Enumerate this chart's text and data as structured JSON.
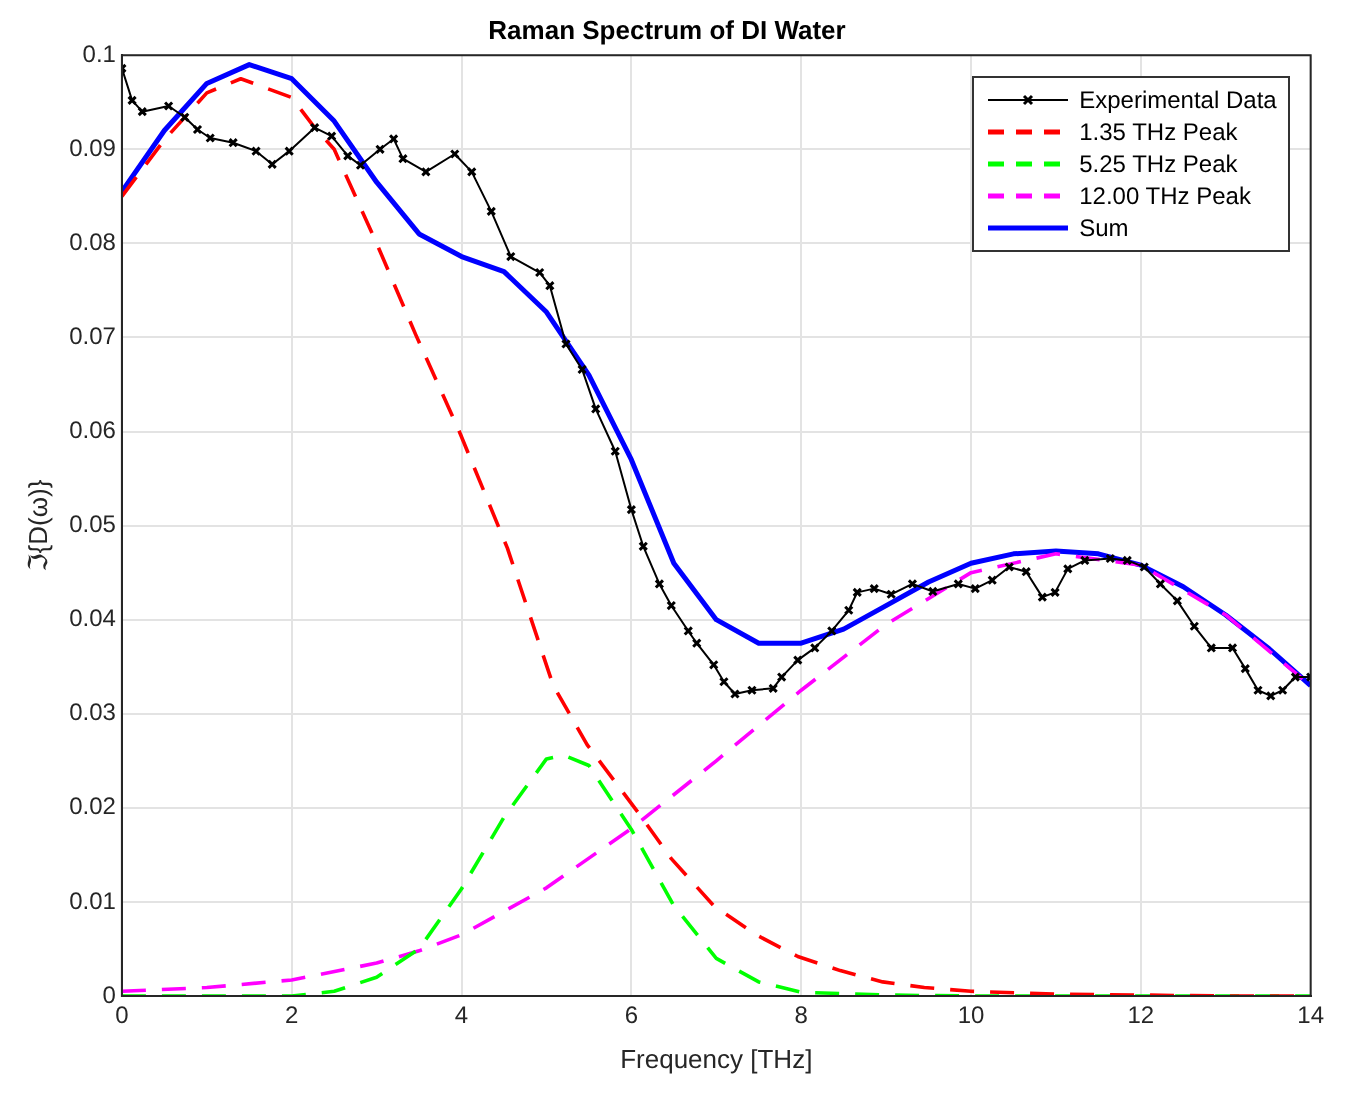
{
  "chart_data": {
    "type": "line",
    "title": "Raman Spectrum of DI Water",
    "xlabel": "Frequency [THz]",
    "ylabel": "ℑ{D(ω)}",
    "xlim": [
      0,
      14
    ],
    "xticks": [
      0,
      2,
      4,
      6,
      8,
      10,
      12,
      14
    ],
    "ylim": [
      0,
      0.1
    ],
    "yticks": [
      0,
      0.01,
      0.02,
      0.03,
      0.04,
      0.05,
      0.06,
      0.07,
      0.08,
      0.09,
      0.1
    ],
    "grid": true,
    "legend": "top right",
    "series": [
      {
        "name": "Experimental Data",
        "color": "#000000",
        "marker": "cross",
        "line_style": "solid",
        "x": [
          0,
          0.12,
          0.24,
          0.55,
          0.74,
          0.89,
          1.04,
          1.31,
          1.58,
          1.77,
          1.97,
          2.27,
          2.47,
          2.66,
          2.81,
          3.04,
          3.2,
          3.31,
          3.58,
          3.92,
          4.12,
          4.35,
          4.58,
          4.92,
          5.04,
          5.23,
          5.42,
          5.58,
          5.81,
          6.0,
          6.14,
          6.33,
          6.47,
          6.67,
          6.77,
          6.97,
          7.09,
          7.22,
          7.42,
          7.67,
          7.77,
          7.96,
          8.16,
          8.36,
          8.56,
          8.66,
          8.86,
          9.06,
          9.31,
          9.55,
          9.85,
          10.05,
          10.25,
          10.45,
          10.65,
          10.84,
          10.99,
          11.14,
          11.34,
          11.64,
          11.84,
          12.04,
          12.23,
          12.43,
          12.63,
          12.83,
          13.08,
          13.23,
          13.38,
          13.53,
          13.67,
          13.82,
          14.0
        ],
        "values": [
          0.0986,
          0.0952,
          0.094,
          0.0946,
          0.0934,
          0.0921,
          0.0912,
          0.0907,
          0.0898,
          0.0884,
          0.0898,
          0.0923,
          0.0914,
          0.0893,
          0.0883,
          0.09,
          0.0911,
          0.089,
          0.0876,
          0.0895,
          0.0876,
          0.0834,
          0.0786,
          0.0769,
          0.0755,
          0.0693,
          0.0666,
          0.0624,
          0.0579,
          0.0517,
          0.0478,
          0.0438,
          0.0415,
          0.0388,
          0.0375,
          0.0352,
          0.0334,
          0.0321,
          0.0325,
          0.0327,
          0.0339,
          0.0357,
          0.037,
          0.0388,
          0.041,
          0.0429,
          0.0433,
          0.0427,
          0.0438,
          0.043,
          0.0438,
          0.0433,
          0.0442,
          0.0456,
          0.0451,
          0.0424,
          0.0429,
          0.0454,
          0.0463,
          0.0465,
          0.0463,
          0.0456,
          0.0438,
          0.042,
          0.0393,
          0.037,
          0.037,
          0.0348,
          0.0325,
          0.0319,
          0.0325,
          0.0339,
          0.0339
        ]
      },
      {
        "name": "1.35 THz Peak",
        "color": "#ff0000",
        "marker": "none",
        "line_style": "dashed",
        "x": [
          0,
          0.5,
          1,
          1.4,
          2,
          2.27,
          2.5,
          3,
          3.46,
          3.96,
          4.54,
          5.08,
          5.48,
          6.08,
          6.47,
          6.97,
          7.47,
          7.96,
          8.46,
          8.96,
          9.45,
          10,
          11,
          12,
          13,
          14
        ],
        "values": [
          0.085,
          0.091,
          0.096,
          0.0975,
          0.0955,
          0.0923,
          0.09,
          0.08,
          0.0703,
          0.0603,
          0.0476,
          0.033,
          0.0267,
          0.0195,
          0.0146,
          0.0096,
          0.0065,
          0.0042,
          0.0027,
          0.0015,
          0.0009,
          0.0005,
          0.0002,
          0.0001,
          0,
          0
        ]
      },
      {
        "name": "5.25 THz Peak",
        "color": "#00ff00",
        "marker": "none",
        "line_style": "dashed",
        "x": [
          0,
          1,
          2,
          2.5,
          3,
          3.5,
          4,
          4.5,
          5,
          5.2,
          5.5,
          6,
          6.5,
          7,
          7.5,
          8,
          9,
          10,
          12,
          14
        ],
        "values": [
          0,
          0,
          0,
          0.0005,
          0.002,
          0.005,
          0.0114,
          0.019,
          0.0252,
          0.0256,
          0.0245,
          0.0177,
          0.0096,
          0.004,
          0.0015,
          0.0004,
          0.0001,
          0,
          0,
          0
        ]
      },
      {
        "name": "12.00 THz Peak",
        "color": "#ff00ff",
        "marker": "none",
        "line_style": "dashed",
        "x": [
          0,
          1,
          2,
          3,
          3.5,
          4,
          5,
          6,
          7,
          8,
          9,
          10,
          11,
          12,
          13,
          14
        ],
        "values": [
          0.0005,
          0.0009,
          0.0017,
          0.0035,
          0.0048,
          0.0065,
          0.0115,
          0.0178,
          0.025,
          0.0325,
          0.0395,
          0.045,
          0.047,
          0.0458,
          0.0405,
          0.033
        ]
      },
      {
        "name": "Sum",
        "color": "#0000ff",
        "marker": "none",
        "line_style": "solid",
        "x": [
          0,
          0.5,
          1,
          1.5,
          2,
          2.5,
          3,
          3.5,
          4,
          4.5,
          5,
          5.5,
          6,
          6.5,
          7,
          7.5,
          8,
          8.5,
          9,
          9.5,
          10,
          10.5,
          11,
          11.5,
          12,
          12.5,
          13,
          13.5,
          14
        ],
        "values": [
          0.0855,
          0.092,
          0.097,
          0.099,
          0.0975,
          0.093,
          0.0865,
          0.081,
          0.0786,
          0.077,
          0.0727,
          0.066,
          0.057,
          0.046,
          0.04,
          0.0375,
          0.0375,
          0.039,
          0.0415,
          0.044,
          0.046,
          0.047,
          0.0473,
          0.047,
          0.0458,
          0.0435,
          0.0405,
          0.037,
          0.033
        ]
      }
    ]
  }
}
